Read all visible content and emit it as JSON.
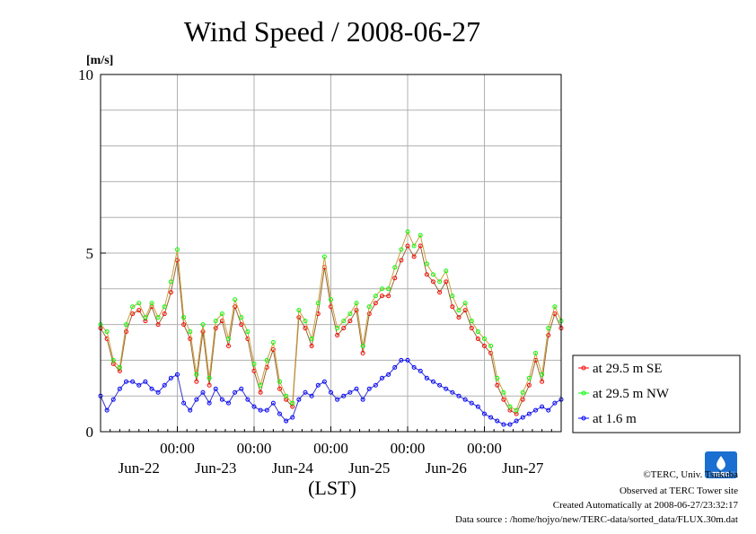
{
  "chart_data": {
    "type": "line",
    "title": "Wind Speed / 2008-06-27",
    "ylabel": "[m/s]",
    "xlabel": "(LST)",
    "ylim": [
      0,
      10
    ],
    "y_ticks": [
      0,
      5,
      10
    ],
    "x_tick_labels": [
      "00:00",
      "00:00",
      "00:00",
      "00:00",
      "00:00"
    ],
    "x_date_labels": [
      "Jun-22",
      "Jun-23",
      "Jun-24",
      "Jun-25",
      "Jun-26",
      "Jun-27"
    ],
    "x_range_hours": [
      0,
      144
    ],
    "grid": true,
    "legend_position": "right",
    "x_hours": [
      0,
      2,
      4,
      6,
      8,
      10,
      12,
      14,
      16,
      18,
      20,
      22,
      24,
      26,
      28,
      30,
      32,
      34,
      36,
      38,
      40,
      42,
      44,
      46,
      48,
      50,
      52,
      54,
      56,
      58,
      60,
      62,
      64,
      66,
      68,
      70,
      72,
      74,
      76,
      78,
      80,
      82,
      84,
      86,
      88,
      90,
      92,
      94,
      96,
      98,
      100,
      102,
      104,
      106,
      108,
      110,
      112,
      114,
      116,
      118,
      120,
      122,
      124,
      126,
      128,
      130,
      132,
      134,
      136,
      138,
      140,
      142,
      144
    ],
    "series": [
      {
        "name": "at 29.5 m SE",
        "color": "#ff0000",
        "values": [
          2.9,
          2.6,
          1.9,
          1.7,
          2.8,
          3.3,
          3.4,
          3.1,
          3.5,
          3.0,
          3.3,
          3.9,
          4.8,
          3.0,
          2.6,
          1.4,
          2.8,
          1.3,
          2.9,
          3.1,
          2.4,
          3.5,
          3.0,
          2.6,
          1.7,
          1.1,
          1.8,
          2.3,
          1.2,
          0.9,
          0.7,
          3.2,
          2.9,
          2.4,
          3.3,
          4.6,
          3.5,
          2.7,
          2.9,
          3.1,
          3.4,
          2.2,
          3.3,
          3.6,
          3.8,
          3.8,
          4.3,
          4.8,
          5.2,
          4.9,
          5.2,
          4.4,
          4.2,
          3.9,
          4.2,
          3.5,
          3.2,
          3.4,
          2.9,
          2.6,
          2.4,
          2.2,
          1.3,
          0.9,
          0.6,
          0.5,
          0.9,
          1.3,
          2.0,
          1.4,
          2.7,
          3.3,
          2.9
        ]
      },
      {
        "name": "at 29.5 m NW",
        "color": "#00ff00",
        "values": [
          3.0,
          2.8,
          2.0,
          1.8,
          3.0,
          3.5,
          3.6,
          3.2,
          3.6,
          3.2,
          3.5,
          4.2,
          5.1,
          3.2,
          2.8,
          1.6,
          3.0,
          1.5,
          3.1,
          3.3,
          2.6,
          3.7,
          3.2,
          2.8,
          1.9,
          1.3,
          2.0,
          2.5,
          1.4,
          1.0,
          0.8,
          3.4,
          3.1,
          2.6,
          3.6,
          4.9,
          3.7,
          2.9,
          3.1,
          3.3,
          3.6,
          2.4,
          3.5,
          3.8,
          4.0,
          4.0,
          4.6,
          5.1,
          5.6,
          5.2,
          5.5,
          4.7,
          4.4,
          4.2,
          4.5,
          3.8,
          3.4,
          3.6,
          3.1,
          2.8,
          2.6,
          2.4,
          1.5,
          1.1,
          0.7,
          0.6,
          1.1,
          1.5,
          2.2,
          1.6,
          2.9,
          3.5,
          3.1
        ]
      },
      {
        "name": "at 1.6 m",
        "color": "#0000ff",
        "values": [
          1.0,
          0.6,
          0.9,
          1.2,
          1.4,
          1.4,
          1.3,
          1.4,
          1.2,
          1.1,
          1.3,
          1.5,
          1.6,
          0.8,
          0.6,
          0.9,
          1.1,
          0.8,
          1.2,
          0.9,
          0.8,
          1.1,
          1.2,
          0.9,
          0.7,
          0.6,
          0.6,
          0.8,
          0.5,
          0.3,
          0.4,
          0.9,
          1.1,
          1.0,
          1.3,
          1.4,
          1.1,
          0.9,
          1.0,
          1.1,
          1.2,
          0.9,
          1.2,
          1.3,
          1.5,
          1.6,
          1.8,
          2.0,
          2.0,
          1.8,
          1.7,
          1.5,
          1.4,
          1.3,
          1.2,
          1.1,
          1.0,
          0.9,
          0.8,
          0.7,
          0.5,
          0.4,
          0.3,
          0.2,
          0.2,
          0.3,
          0.4,
          0.5,
          0.6,
          0.7,
          0.6,
          0.8,
          0.9
        ]
      }
    ]
  },
  "credits": {
    "logo_text": "TERC",
    "copyright": "©TERC, Univ. Tsukuba",
    "observed": "Observed at TERC Tower site",
    "created": "Created Automatically at 2008-06-27/23:32:17",
    "source": "Data source : /home/hojyo/new/TERC-data/sorted_data/FLUX.30m.dat"
  }
}
